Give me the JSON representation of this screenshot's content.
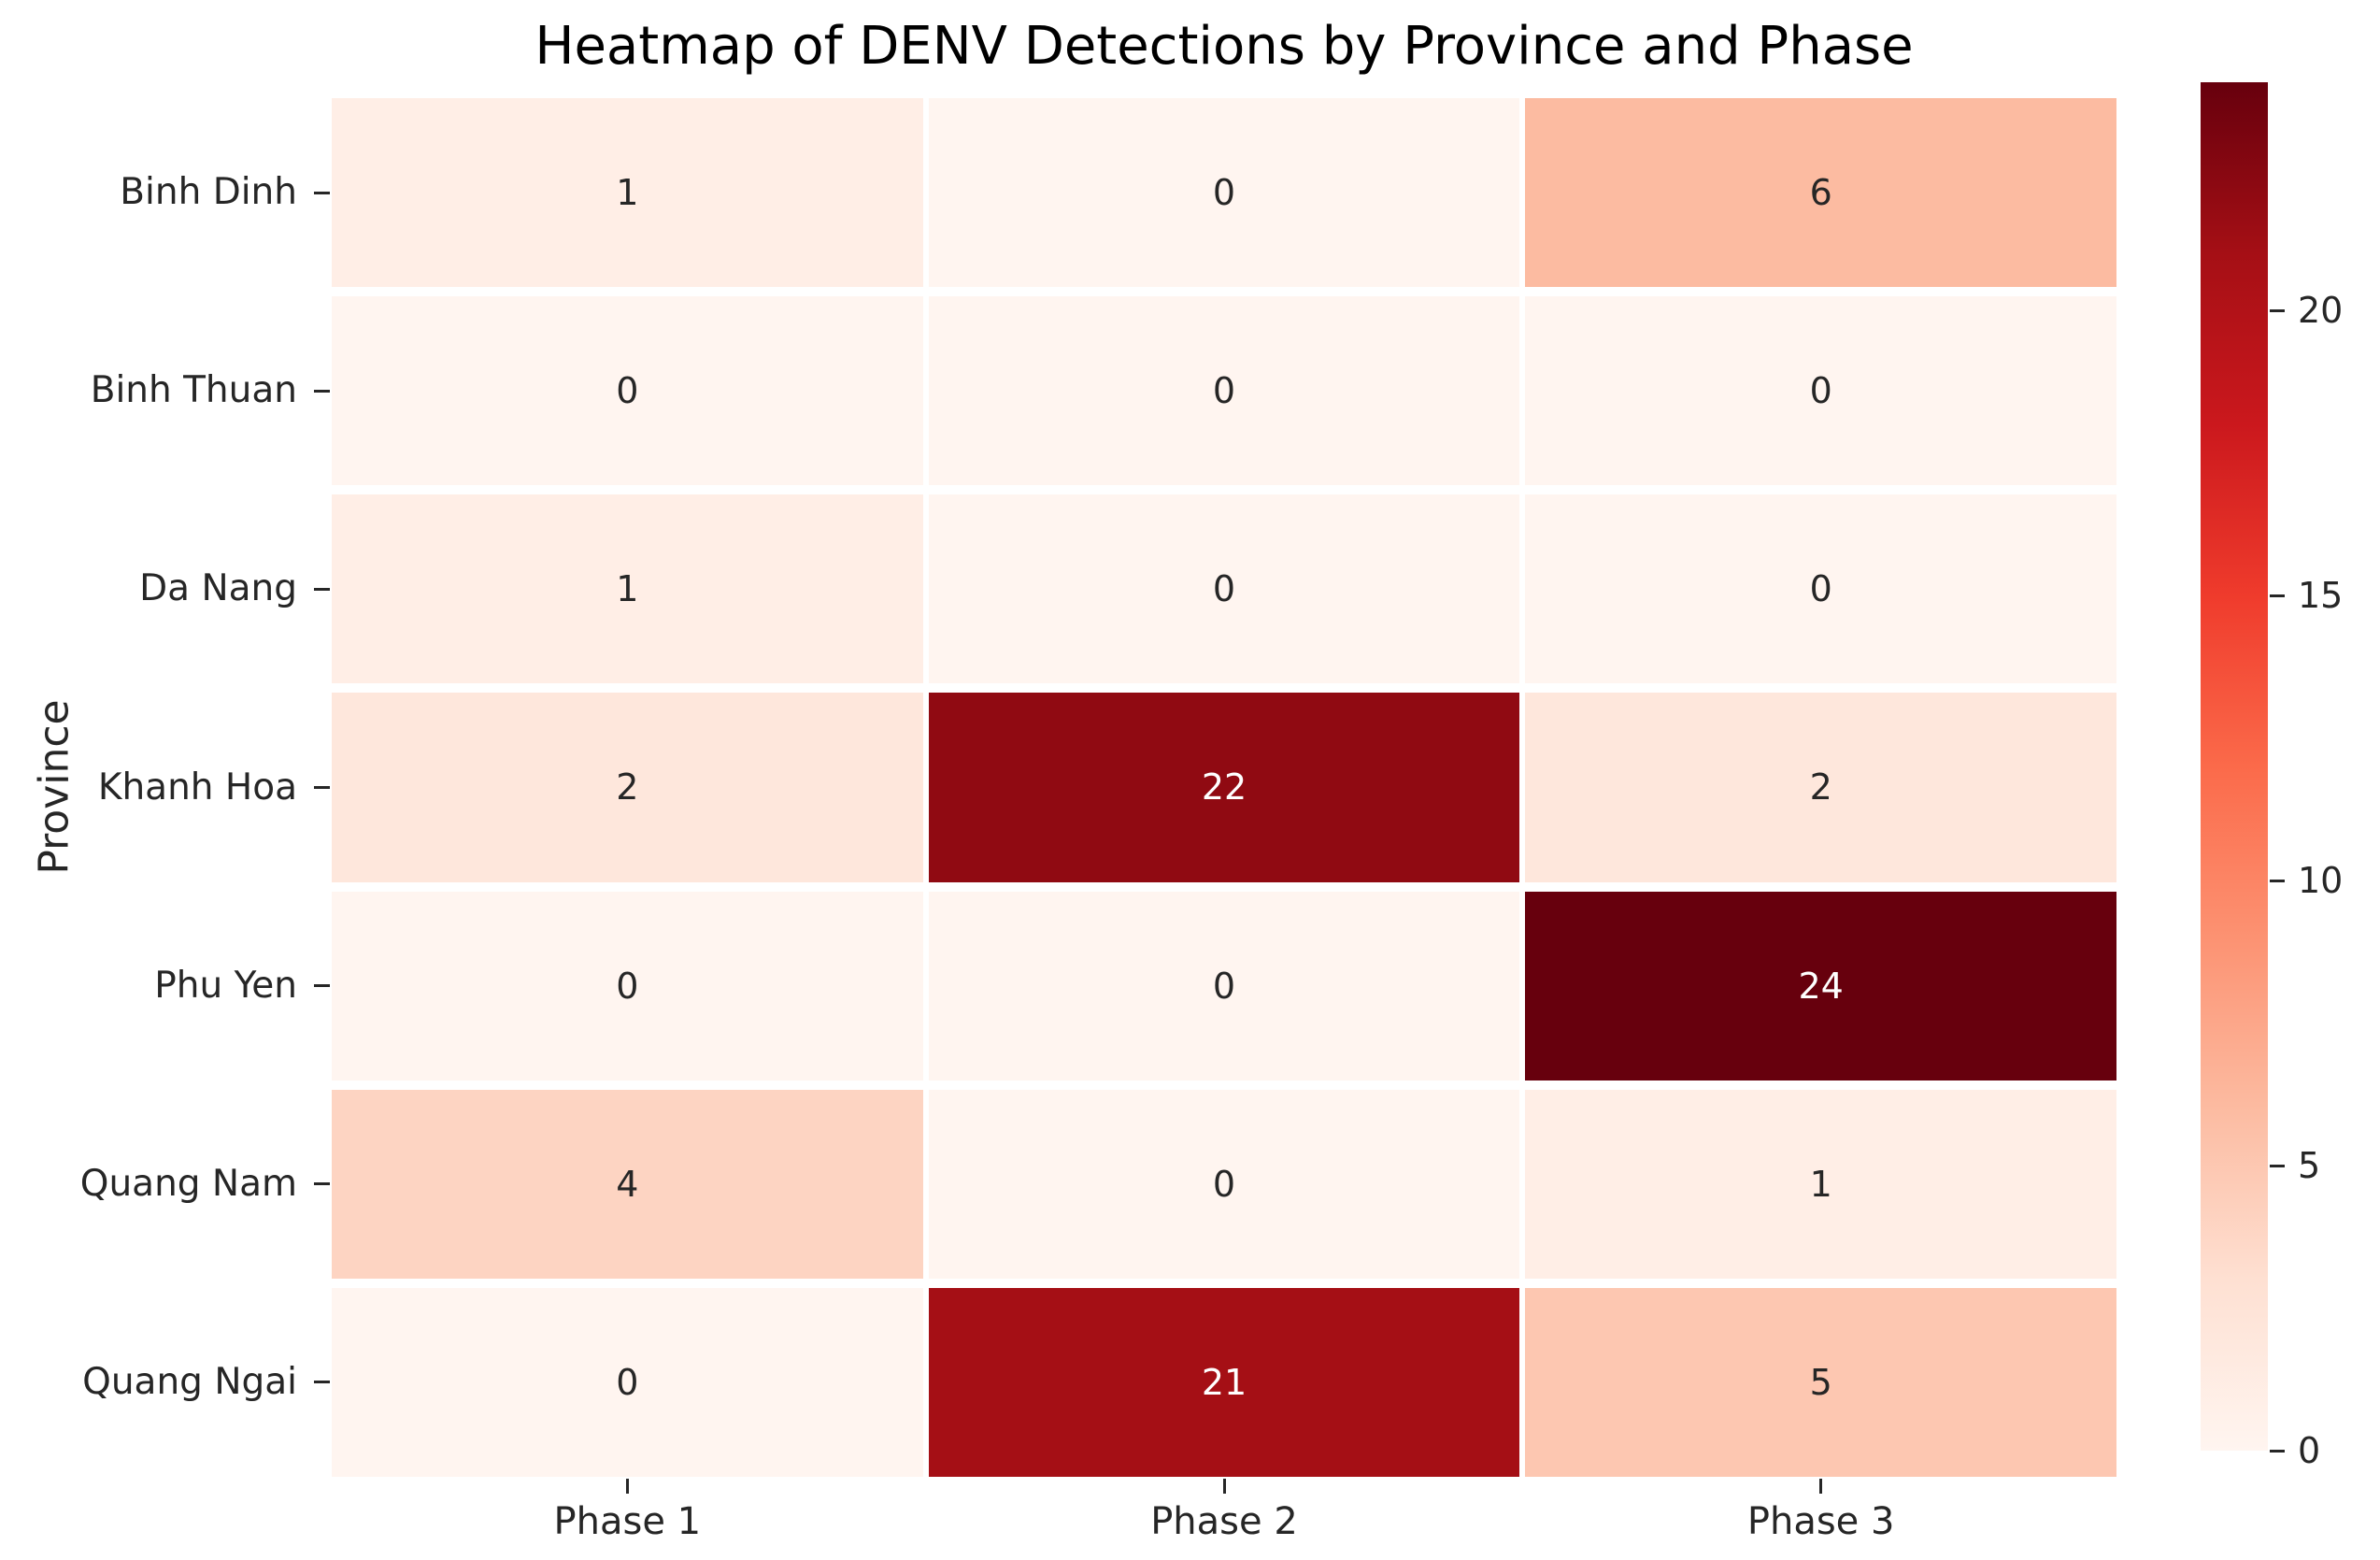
{
  "title": "Heatmap of DENV Detections by Province and Phase",
  "ylabel": "Province",
  "chart_data": {
    "type": "heatmap",
    "title": "Heatmap of DENV Detections by Province and Phase",
    "xlabel": "",
    "ylabel": "Province",
    "categories_x": [
      "Phase 1",
      "Phase 2",
      "Phase 3"
    ],
    "categories_y": [
      "Binh Dinh",
      "Binh Thuan",
      "Da Nang",
      "Khanh Hoa",
      "Phu Yen",
      "Quang Nam",
      "Quang Ngai"
    ],
    "values": [
      [
        1,
        0,
        6
      ],
      [
        0,
        0,
        0
      ],
      [
        1,
        0,
        0
      ],
      [
        2,
        22,
        2
      ],
      [
        0,
        0,
        24
      ],
      [
        4,
        0,
        1
      ],
      [
        0,
        21,
        5
      ]
    ],
    "annotated": true,
    "colormap": "Reds",
    "vmin": 0,
    "vmax": 24,
    "legend_position": "right-colorbar",
    "colorbar_ticks": [
      0,
      5,
      10,
      15,
      20
    ],
    "colormap_stops": [
      [
        0.0,
        "#fff5f0"
      ],
      [
        0.125,
        "#fee0d2"
      ],
      [
        0.25,
        "#fcbba1"
      ],
      [
        0.375,
        "#fc9272"
      ],
      [
        0.5,
        "#fb6a4a"
      ],
      [
        0.625,
        "#ef3b2c"
      ],
      [
        0.75,
        "#cb181d"
      ],
      [
        0.875,
        "#a50f15"
      ],
      [
        1.0,
        "#67000d"
      ]
    ],
    "annotation_text_colors": {
      "on_light": "#262626",
      "on_dark": "#ffffff"
    },
    "grid": false
  }
}
